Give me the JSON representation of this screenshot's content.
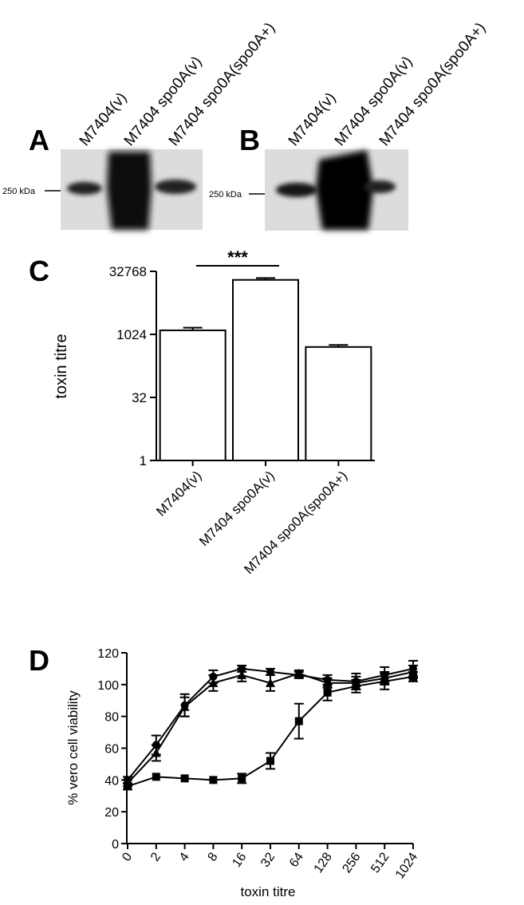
{
  "panels": {
    "a": "A",
    "b": "B",
    "c": "C",
    "d": "D"
  },
  "blots": {
    "lanes": [
      "M7404(v)",
      "M7404 spo0A(v)",
      "M7404 spo0A(spo0A+)"
    ],
    "marker_a": "250 kDa",
    "marker_b": "250 kDa"
  },
  "chart_data": [
    {
      "type": "bar",
      "panel": "C",
      "categories": [
        "M7404(v)",
        "M7404 spo0A(v)",
        "M7404 spo0A(spo0A+)"
      ],
      "values": [
        1280,
        20480,
        512
      ],
      "errors": [
        200,
        2200,
        60
      ],
      "ylabel": "toxin titre",
      "xlabel": "",
      "yscale": "log2",
      "ylim": [
        1,
        32768
      ],
      "yticks": [
        "1",
        "32",
        "1024",
        "32768"
      ],
      "significance": {
        "label": "***",
        "between": [
          0,
          1
        ]
      }
    },
    {
      "type": "line",
      "panel": "D",
      "x": [
        "0",
        "2",
        "4",
        "8",
        "16",
        "32",
        "64",
        "128",
        "256",
        "512",
        "1024"
      ],
      "series": [
        {
          "marker": "circle",
          "values": [
            40,
            62,
            87,
            105,
            110,
            108,
            106,
            103,
            102,
            106,
            110
          ],
          "errors": [
            2,
            6,
            7,
            4,
            2,
            2,
            2,
            3,
            5,
            5,
            5
          ]
        },
        {
          "marker": "triangle",
          "values": [
            38,
            57,
            86,
            101,
            106,
            101,
            107,
            101,
            101,
            104,
            108
          ],
          "errors": [
            2,
            5,
            6,
            5,
            4,
            5,
            2,
            3,
            4,
            4,
            4
          ]
        },
        {
          "marker": "square",
          "values": [
            36,
            42,
            41,
            40,
            41,
            52,
            77,
            95,
            99,
            102,
            105
          ],
          "errors": [
            2,
            1,
            1,
            1,
            3,
            5,
            11,
            5,
            4,
            5,
            3
          ]
        }
      ],
      "xlabel": "toxin titre",
      "ylabel": "% vero cell viability",
      "ylim": [
        0,
        120
      ],
      "yticks": [
        "0",
        "20",
        "40",
        "60",
        "80",
        "100",
        "120"
      ]
    }
  ]
}
